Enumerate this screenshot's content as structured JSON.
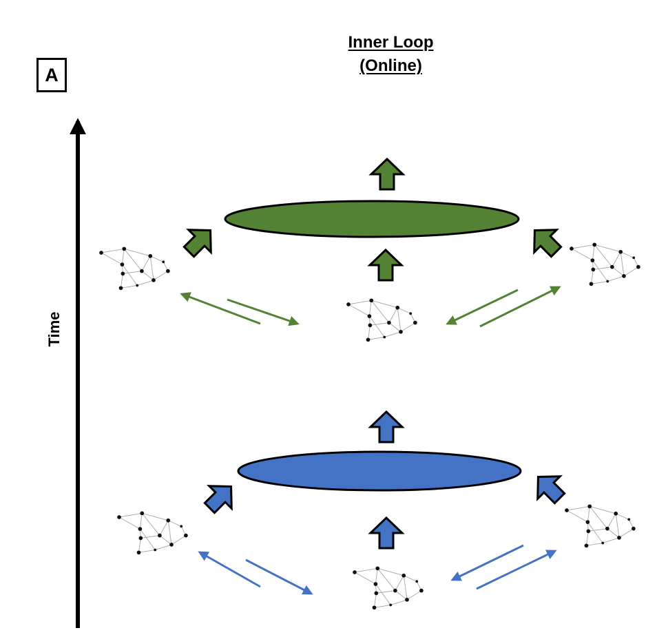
{
  "panel_label": "A",
  "title": {
    "line1": "Inner Loop",
    "line2": "(Online)"
  },
  "time_axis_label": "Time",
  "colors": {
    "green": "#548235",
    "blue": "#4472C4",
    "outline": "#000000",
    "graph_edge": "#a9a9a9",
    "graph_node": "#111111"
  },
  "stages": [
    {
      "id": "upper",
      "color_key": "green"
    },
    {
      "id": "lower",
      "color_key": "blue"
    }
  ]
}
